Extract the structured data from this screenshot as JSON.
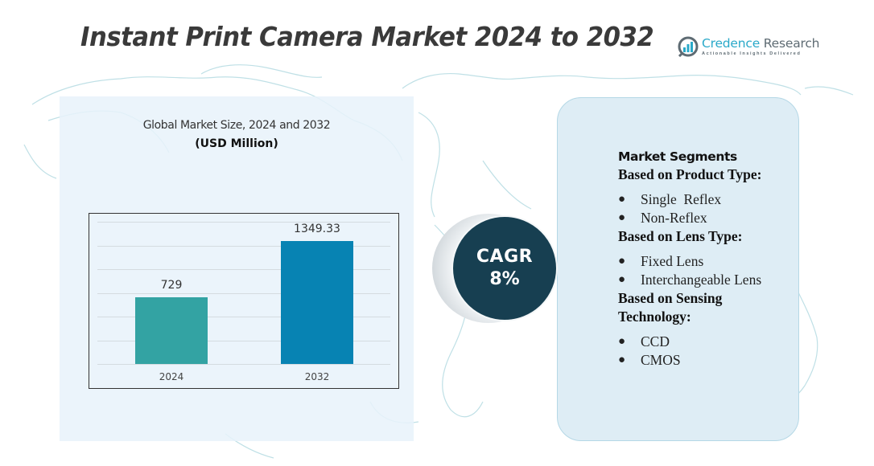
{
  "header": {
    "title": "Instant Print Camera Market 2024 to 2032"
  },
  "logo": {
    "name_primary": "Credence",
    "name_secondary": "Research",
    "tagline": "Actionable Insights Delivered",
    "icon": "bar-chart-magnifier-icon"
  },
  "chart_panel": {
    "title": "Global Market Size,  2024 and 2032",
    "unit": "(USD Million)"
  },
  "chart_data": {
    "type": "bar",
    "title": "Global Market Size, 2024 and 2032",
    "subtitle": "(USD Million)",
    "categories": [
      "2024",
      "2032"
    ],
    "values": [
      729,
      1349.33
    ],
    "value_labels": [
      "729",
      "1349.33"
    ],
    "colors": [
      "#33a3a3",
      "#0783b3"
    ],
    "xlabel": "",
    "ylabel": "",
    "ylim": [
      0,
      1600
    ],
    "grid": true,
    "legend": "none"
  },
  "cagr": {
    "label": "CAGR",
    "value": "8%",
    "color": "#173f51"
  },
  "segments": {
    "header": "Market Segments",
    "groups": [
      {
        "title": "Based on Product Type:",
        "items": [
          "Single  Reflex",
          "Non-Reflex"
        ]
      },
      {
        "title": "Based on Lens Type:",
        "items": [
          "Fixed Lens",
          "Interchangeable Lens"
        ]
      },
      {
        "title": "Based on Sensing Technology:",
        "items": [
          "CCD",
          "CMOS"
        ]
      }
    ],
    "bullet": "●"
  }
}
